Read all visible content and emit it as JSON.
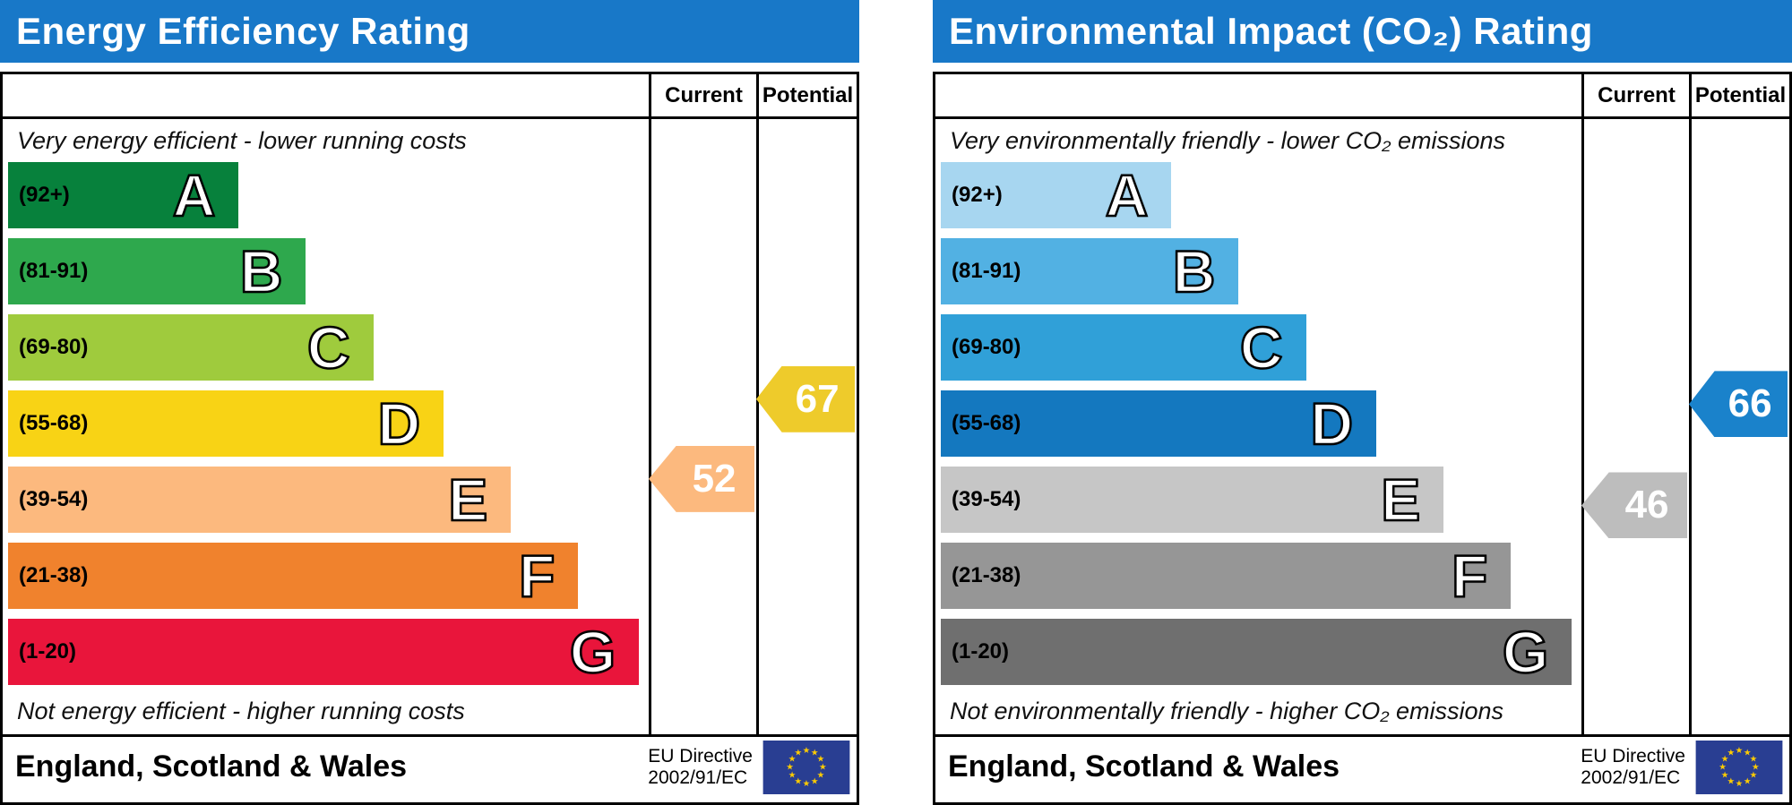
{
  "columns": {
    "current": "Current",
    "potential": "Potential"
  },
  "bands": [
    {
      "letter": "A",
      "range_label": "(92+)",
      "min": 92,
      "max": 100
    },
    {
      "letter": "B",
      "range_label": "(81-91)",
      "min": 81,
      "max": 91
    },
    {
      "letter": "C",
      "range_label": "(69-80)",
      "min": 69,
      "max": 80
    },
    {
      "letter": "D",
      "range_label": "(55-68)",
      "min": 55,
      "max": 68
    },
    {
      "letter": "E",
      "range_label": "(39-54)",
      "min": 39,
      "max": 54
    },
    {
      "letter": "F",
      "range_label": "(21-38)",
      "min": 21,
      "max": 38
    },
    {
      "letter": "G",
      "range_label": "(1-20)",
      "min": 1,
      "max": 20
    }
  ],
  "panels": [
    {
      "id": "energy-efficiency",
      "title": "Energy Efficiency Rating",
      "top_caption": "Very energy efficient - lower running costs",
      "bottom_caption": "Not energy efficient - higher running costs",
      "band_colors": [
        "#07813c",
        "#2ea84d",
        "#9fcb3d",
        "#f8d315",
        "#fcb97e",
        "#f0822d",
        "#e9153b"
      ],
      "current": {
        "value": 52,
        "color": "#fcb97e"
      },
      "potential": {
        "value": 67,
        "color": "#eecb2b"
      },
      "footer": {
        "region": "England, Scotland & Wales",
        "directive_line1": "EU Directive",
        "directive_line2": "2002/91/EC"
      }
    },
    {
      "id": "environmental-impact",
      "title": "Environmental Impact (CO₂) Rating",
      "top_caption": "Very environmentally friendly - lower CO₂ emissions",
      "bottom_caption": "Not environmentally friendly - higher CO₂ emissions",
      "band_colors": [
        "#a7d6f0",
        "#52b1e3",
        "#30a0d8",
        "#1478bf",
        "#c6c6c6",
        "#969696",
        "#6f6f6f"
      ],
      "current": {
        "value": 46,
        "color": "#bdbdbd"
      },
      "potential": {
        "value": 66,
        "color": "#1a82cb"
      },
      "footer": {
        "region": "England, Scotland & Wales",
        "directive_line1": "EU Directive",
        "directive_line2": "2002/91/EC"
      }
    }
  ],
  "chart_data": [
    {
      "type": "bar",
      "title": "Energy Efficiency Rating",
      "categories": [
        "A (92+)",
        "B (81-91)",
        "C (69-80)",
        "D (55-68)",
        "E (39-54)",
        "F (21-38)",
        "G (1-20)"
      ],
      "series": [
        {
          "name": "Current",
          "values": [
            52
          ]
        },
        {
          "name": "Potential",
          "values": [
            67
          ]
        }
      ],
      "top_caption": "Very energy efficient - lower running costs",
      "bottom_caption": "Not energy efficient - higher running costs",
      "region": "England, Scotland & Wales",
      "directive": "EU Directive 2002/91/EC"
    },
    {
      "type": "bar",
      "title": "Environmental Impact (CO₂) Rating",
      "categories": [
        "A (92+)",
        "B (81-91)",
        "C (69-80)",
        "D (55-68)",
        "E (39-54)",
        "F (21-38)",
        "G (1-20)"
      ],
      "series": [
        {
          "name": "Current",
          "values": [
            46
          ]
        },
        {
          "name": "Potential",
          "values": [
            66
          ]
        }
      ],
      "top_caption": "Very environmentally friendly - lower CO₂ emissions",
      "bottom_caption": "Not environmentally friendly - higher CO₂ emissions",
      "region": "England, Scotland & Wales",
      "directive": "EU Directive 2002/91/EC"
    }
  ]
}
